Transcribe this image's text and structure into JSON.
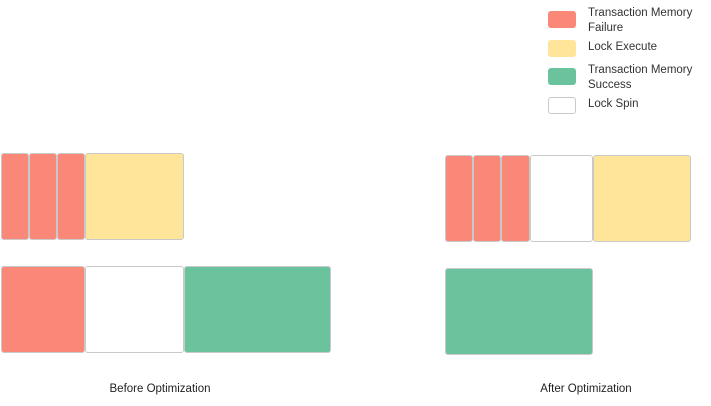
{
  "colors": {
    "failure": "#fa8878",
    "lock_execute": "#fee599",
    "success": "#6bc39e",
    "spin": "#ffffff"
  },
  "legend": {
    "items": [
      {
        "label": "Transaction Memory Failure",
        "color": "#fa8878"
      },
      {
        "label": "Lock Execute",
        "color": "#fee599"
      },
      {
        "label": "Transaction Memory Success",
        "color": "#6bc39e"
      },
      {
        "label": "Lock Spin",
        "color": "#ffffff"
      }
    ]
  },
  "captions": {
    "before": "Before Optimization",
    "after": "After Optimization"
  }
}
